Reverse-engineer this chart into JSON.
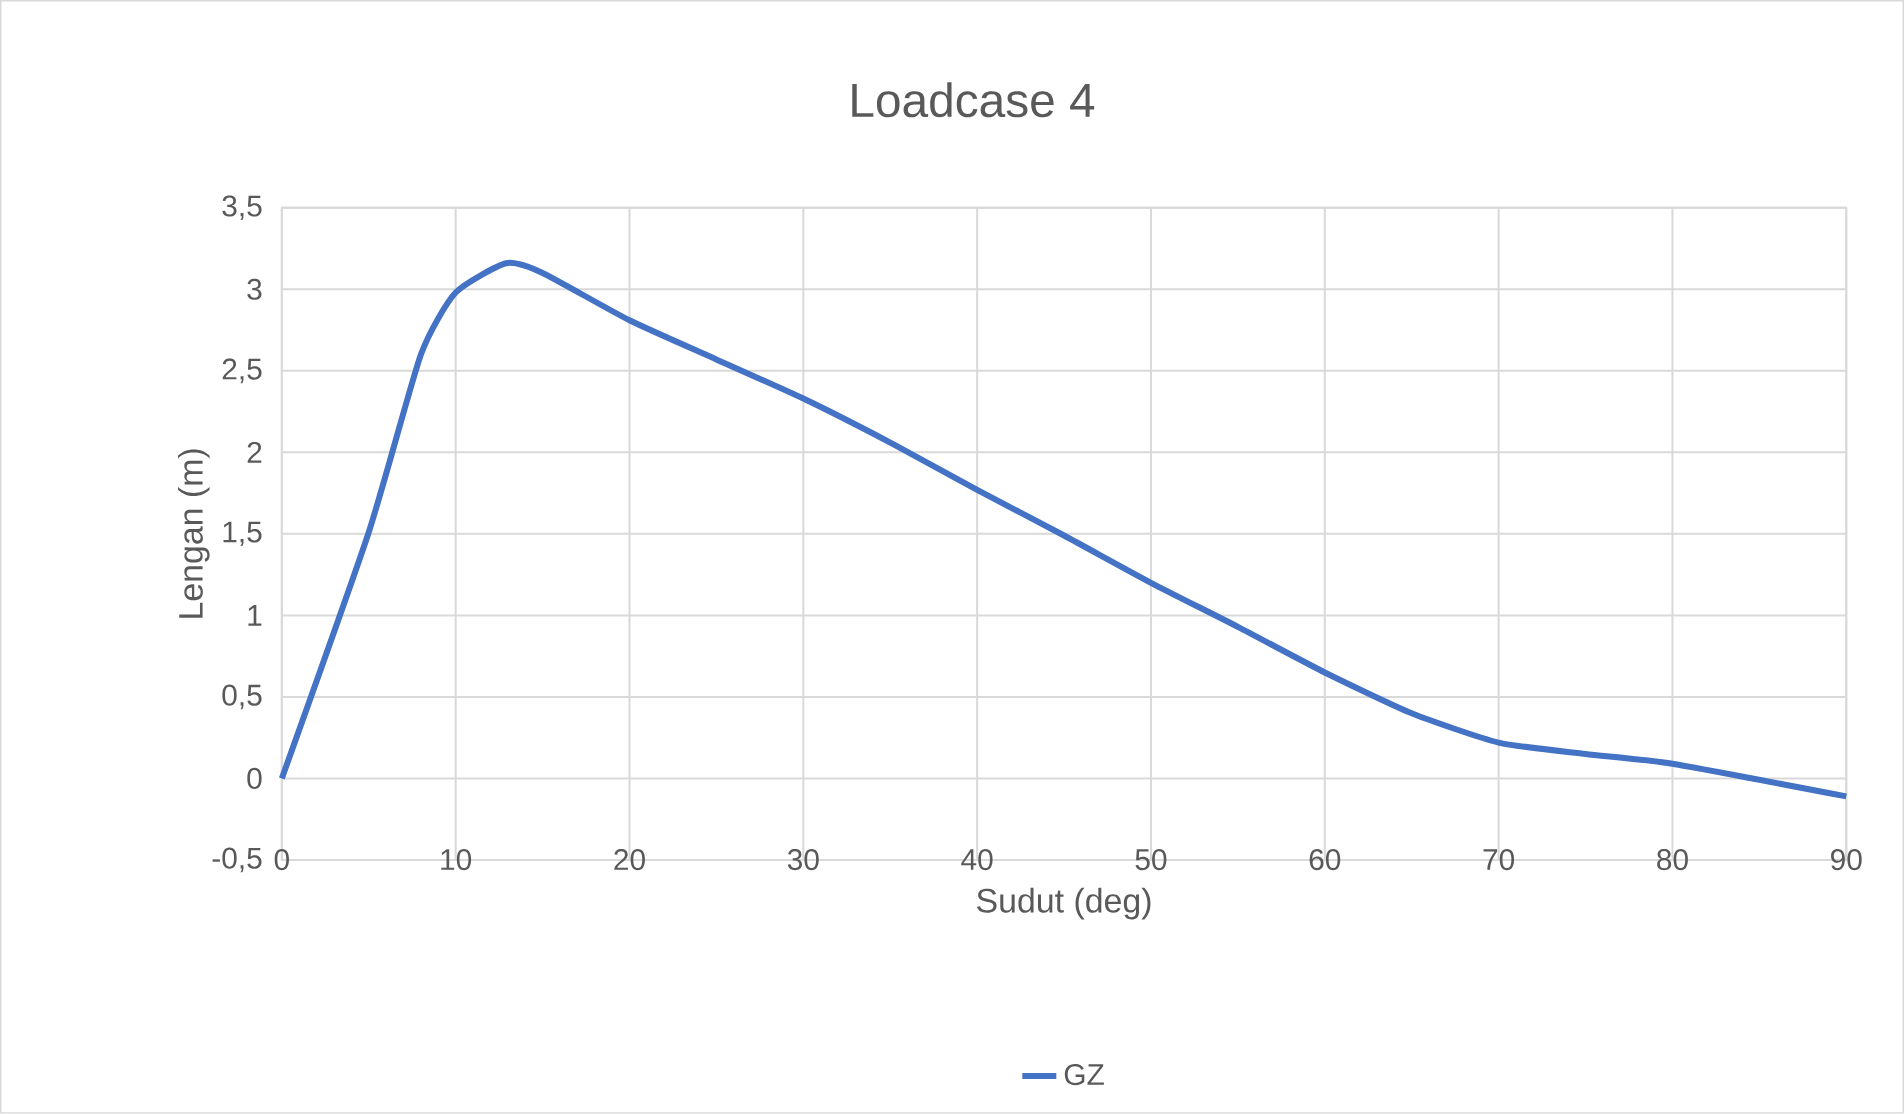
{
  "chart_data": {
    "type": "line",
    "title": "Loadcase 4",
    "xlabel": "Sudut (deg)",
    "ylabel": "Lengan (m)",
    "x": [
      0,
      5,
      8,
      10,
      12.9,
      15,
      20,
      25,
      30,
      35,
      40,
      45,
      50,
      55,
      60,
      65,
      70,
      75,
      80,
      90
    ],
    "series": [
      {
        "name": "GZ",
        "color": "#4472c4",
        "values": [
          0,
          1.51,
          2.6,
          2.98,
          3.16,
          3.1,
          2.81,
          2.57,
          2.33,
          2.06,
          1.77,
          1.49,
          1.2,
          0.93,
          0.65,
          0.4,
          0.22,
          0.15,
          0.09,
          -0.11
        ]
      }
    ],
    "xlim": [
      0,
      90
    ],
    "xticks": [
      0,
      10,
      20,
      30,
      40,
      50,
      60,
      70,
      80,
      90
    ],
    "ylim": [
      -0.5,
      3.5
    ],
    "yticks": [
      {
        "value": -0.5,
        "label": "-0,5"
      },
      0,
      {
        "value": 0.5,
        "label": "0,5"
      },
      1,
      {
        "value": 1.5,
        "label": "1,5"
      },
      2,
      {
        "value": 2.5,
        "label": "2,5"
      },
      3,
      {
        "value": 3.5,
        "label": "3,5"
      }
    ],
    "grid": true,
    "legend": "bottom",
    "marker": "none",
    "line_style": "solid"
  }
}
